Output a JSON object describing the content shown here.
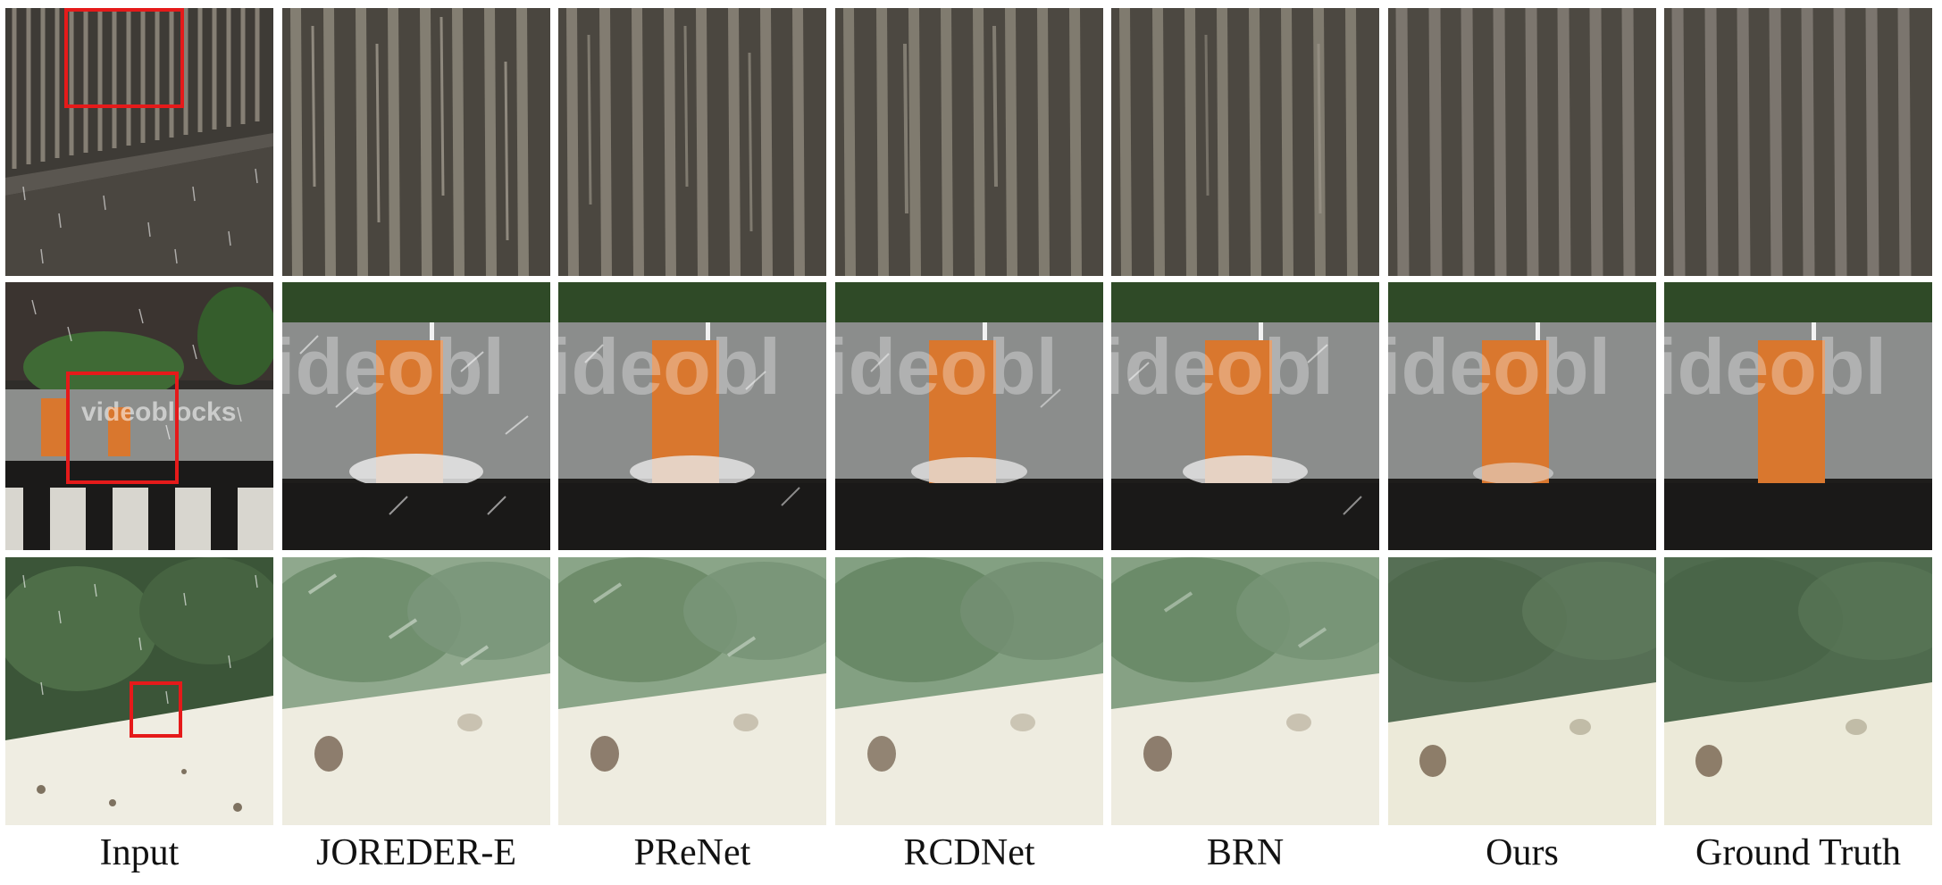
{
  "figure": {
    "methods": [
      "Input",
      "JOREDER-E",
      "PReNet",
      "RCDNet",
      "BRN",
      "Ours",
      "Ground Truth"
    ],
    "watermark": "videoblocks",
    "watermark_crop": "ideobl",
    "colors": {
      "highlight_box": "#e51a1a",
      "background": "#ffffff",
      "row1_stone": "#6f6a60",
      "row2_wall": "#8b8d8c",
      "row2_orange": "#d9772e",
      "row3_foliage": "#4f6b4e",
      "row3_wall": "#efede2"
    },
    "rows": [
      {
        "scene": "wall-stripes"
      },
      {
        "scene": "orange-gate"
      },
      {
        "scene": "foliage-wall"
      }
    ]
  }
}
